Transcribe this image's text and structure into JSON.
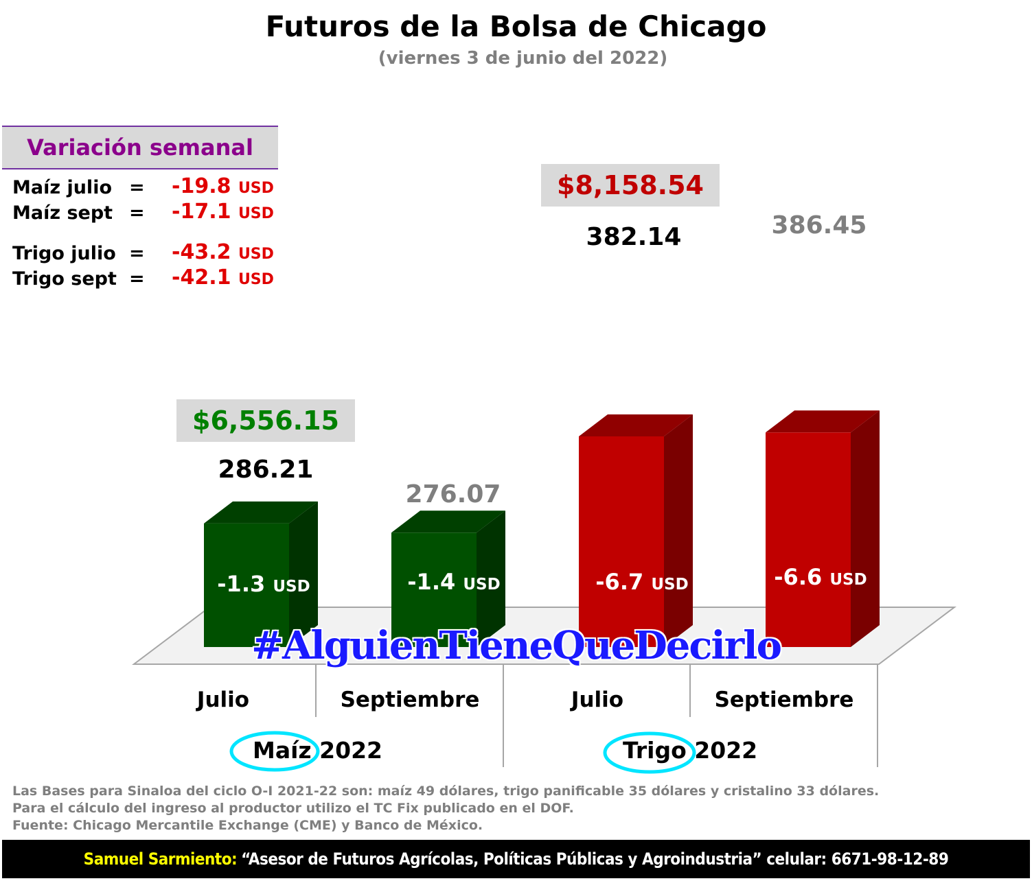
{
  "title": "Futuros de la Bolsa de Chicago",
  "subtitle": "(viernes 3 de junio del 2022)",
  "weekly_variation": {
    "header": "Variación semanal",
    "rows": [
      {
        "label": "Maíz julio",
        "eq": "=",
        "value": "-19.8",
        "unit": "USD"
      },
      {
        "label": "Maíz sept",
        "eq": "=",
        "value": "-17.1",
        "unit": "USD"
      },
      {
        "label": "Trigo julio",
        "eq": "=",
        "value": "-43.2",
        "unit": "USD"
      },
      {
        "label": "Trigo sept",
        "eq": "=",
        "value": "-42.1",
        "unit": "USD"
      }
    ]
  },
  "colors": {
    "maiz_front": "#005000",
    "maiz_side": "#003300",
    "maiz_top": "#004000",
    "trigo_front": "#c00000",
    "trigo_side": "#7a0000",
    "trigo_top": "#900000",
    "floor": "#f2f2f2",
    "floor_line": "#a6a6a6",
    "circle": "#00e5ff"
  },
  "chart_data": {
    "type": "bar",
    "categories": [
      "Julio",
      "Septiembre",
      "Julio",
      "Septiembre"
    ],
    "groups": [
      {
        "name": "Maíz",
        "year": "2022",
        "price_box": "$6,556.15",
        "price_color": "#008000"
      },
      {
        "name": "Trigo",
        "year": "2022",
        "price_box": "$8,158.54",
        "price_color": "#c00000"
      }
    ],
    "values": [
      286.21,
      276.07,
      382.14,
      386.45
    ],
    "value_labels": [
      "286.21",
      "276.07",
      "382.14",
      "386.45"
    ],
    "value_label_colors": [
      "#000000",
      "#7f7f7f",
      "#000000",
      "#7f7f7f"
    ],
    "change_labels": [
      {
        "value": "-1.3",
        "unit": "USD"
      },
      {
        "value": "-1.4",
        "unit": "USD"
      },
      {
        "value": "-6.7",
        "unit": "USD"
      },
      {
        "value": "-6.6",
        "unit": "USD"
      }
    ]
  },
  "hashtag": "#AlguienTieneQueDecirlo",
  "footnote": [
    "Las Bases para Sinaloa del ciclo O-I 2021-22 son: maíz 49 dólares, trigo panificable 35 dólares y cristalino 33 dólares.",
    "Para el cálculo del ingreso al productor utilizo el TC Fix publicado en el DOF.",
    "Fuente: Chicago Mercantile Exchange (CME) y Banco de México."
  ],
  "footer": {
    "name": "Samuel Sarmiento:",
    "text": "“Asesor de Futuros Agrícolas, Políticas Públicas y Agroindustria”  celular: 6671-98-12-89"
  }
}
